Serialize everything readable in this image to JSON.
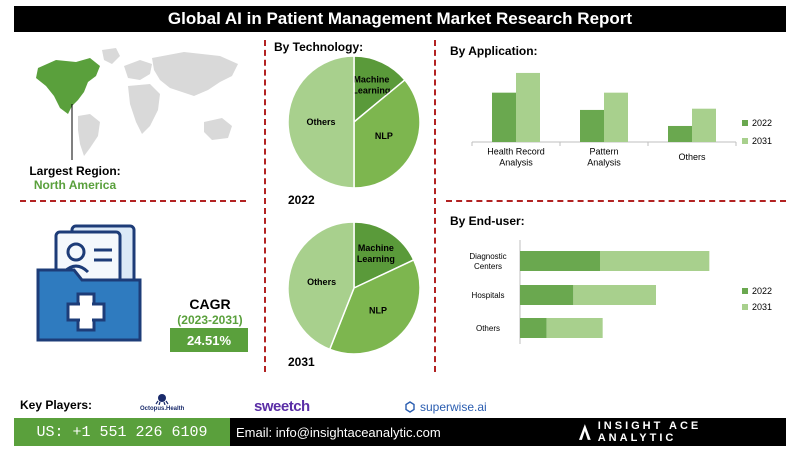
{
  "title": "Global AI in Patient Management Market Research Report",
  "region": {
    "label": "Largest Region:",
    "value": "North America"
  },
  "cagr": {
    "label": "CAGR",
    "period": "(2023-2031)",
    "value": "24.51%"
  },
  "colors": {
    "dark_green": "#5aa03c",
    "mid_green": "#6aa84f",
    "light_green": "#a8d08d",
    "divider": "#b22222",
    "map_grey": "#d9d9d9"
  },
  "technology": {
    "label": "By  Technology:"
  },
  "application": {
    "label": "By Application:"
  },
  "end_user": {
    "label": "By End-user:"
  },
  "key_players": {
    "label": "Key Players:",
    "players": [
      {
        "name": "Octopus.Health",
        "icon": "octopus-logo"
      },
      {
        "name": "sweetch",
        "icon": "sweetch-logo"
      },
      {
        "name": "superwise.ai",
        "icon": "superwise-logo"
      }
    ]
  },
  "footer": {
    "phone": "US: +1 551 226 6109",
    "email": "Email: info@insightaceanalytic.com",
    "brand": "INSIGHT ACE ANALYTIC"
  },
  "chart_data": [
    {
      "type": "pie",
      "title": "2022",
      "labels": [
        "Machine Learning",
        "NLP",
        "Others"
      ],
      "values": [
        14,
        36,
        50
      ],
      "colors": [
        "#5a9a3a",
        "#7db64f",
        "#a8d08d"
      ]
    },
    {
      "type": "pie",
      "title": "2031",
      "labels": [
        "Machine Learning",
        "NLP",
        "Others"
      ],
      "values": [
        18,
        38,
        44
      ],
      "colors": [
        "#5a9a3a",
        "#7db64f",
        "#a8d08d"
      ]
    },
    {
      "type": "bar",
      "title": "By Application:",
      "categories": [
        "Health Record Analysis",
        "Pattern Analysis",
        "Others"
      ],
      "series": [
        {
          "name": "2022",
          "values": [
            40,
            26,
            13
          ]
        },
        {
          "name": "2031",
          "values": [
            56,
            40,
            27
          ]
        }
      ],
      "ylim": [
        0,
        60
      ],
      "legend": "right"
    },
    {
      "type": "bar",
      "orientation": "horizontal",
      "stacked": true,
      "title": "By End-user:",
      "categories": [
        "Diagnostic Centers",
        "Hospitals",
        "Others"
      ],
      "series": [
        {
          "name": "2022",
          "values": [
            30,
            20,
            10
          ]
        },
        {
          "name": "2031",
          "values": [
            41,
            31,
            21
          ]
        }
      ],
      "xlim": [
        0,
        75
      ],
      "legend": "right"
    }
  ]
}
